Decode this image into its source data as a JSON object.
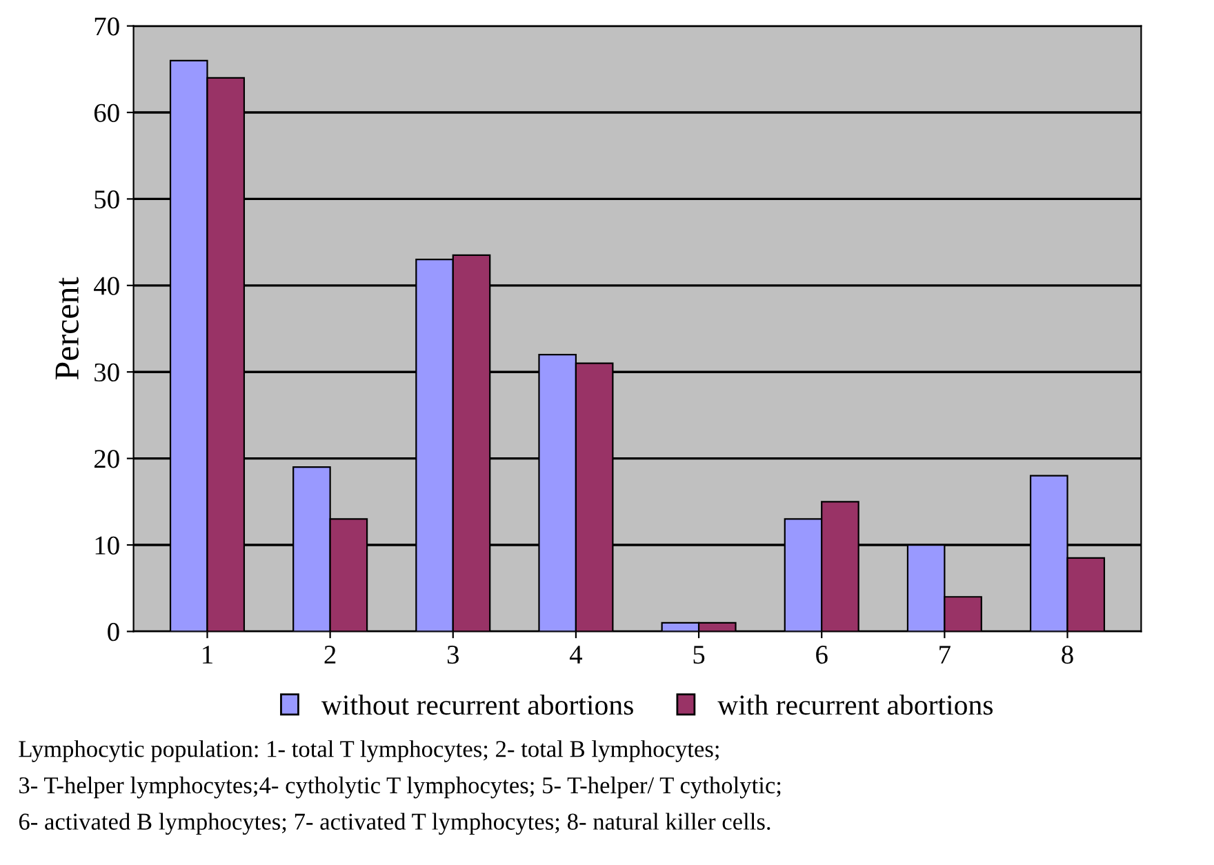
{
  "chart_data": {
    "type": "bar",
    "ylabel": "Percent",
    "categories": [
      "1",
      "2",
      "3",
      "4",
      "5",
      "6",
      "7",
      "8"
    ],
    "series": [
      {
        "name": "without recurrent abortions",
        "color": "#9999ff",
        "values": [
          66,
          19,
          43,
          32,
          1,
          13,
          10,
          18
        ]
      },
      {
        "name": "with recurrent abortions",
        "color": "#993366",
        "values": [
          64,
          13,
          43.5,
          31,
          1,
          15,
          4,
          8.5
        ]
      }
    ],
    "ylim": [
      0,
      70
    ],
    "yticks": [
      0,
      10,
      20,
      30,
      40,
      50,
      60,
      70
    ],
    "grid": "y",
    "legend": "bottom",
    "annotations": [
      "Lymphocytic population: 1- total T lymphocytes; 2- total B lymphocytes;",
      "3- T-helper lymphocytes;4- cytholytic T lymphocytes; 5- T-helper/ T cytholytic;",
      "6- activated B lymphocytes; 7- activated T lymphocytes; 8- natural killer cells."
    ]
  }
}
